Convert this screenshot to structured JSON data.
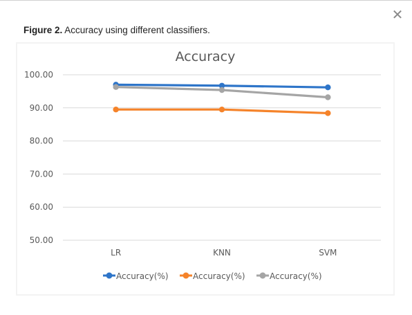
{
  "dialog": {
    "close_icon": "close-icon",
    "close_glyph": "✕"
  },
  "caption": {
    "label": "Figure 2.",
    "text": " Accuracy using different classifiers."
  },
  "colors": {
    "series_1": "#2e75c9",
    "series_2": "#f5832a",
    "series_3": "#a5a5a5",
    "grid": "#d9d9d9",
    "axis_text": "#595959",
    "title_text": "#595959"
  },
  "chart_data": {
    "type": "line",
    "title": "Accuracy",
    "categories": [
      "LR",
      "KNN",
      "SVM"
    ],
    "series": [
      {
        "name": "Accuracy(%)",
        "values": [
          97.0,
          96.7,
          96.2
        ]
      },
      {
        "name": "Accuracy(%)",
        "values": [
          89.5,
          89.5,
          88.4
        ]
      },
      {
        "name": "Accuracy(%)",
        "values": [
          96.3,
          95.4,
          93.2
        ]
      }
    ],
    "y_ticks": [
      "100.00",
      "90.00",
      "80.00",
      "70.00",
      "60.00",
      "50.00"
    ],
    "ylim": [
      50,
      100
    ],
    "grid": true,
    "legend": "bottom",
    "markers": "circle"
  }
}
